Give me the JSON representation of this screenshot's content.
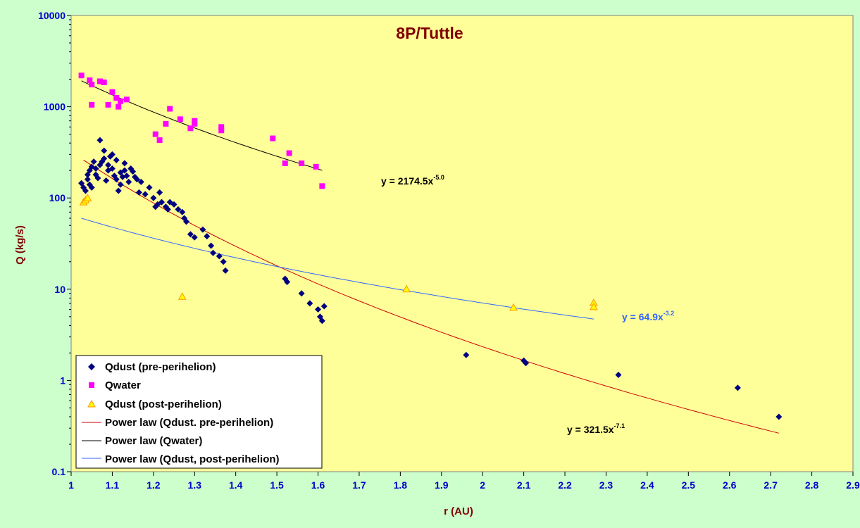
{
  "chart_data": {
    "type": "scatter",
    "title": "8P/Tuttle",
    "xlabel": "r (AU)",
    "ylabel": "Q (kg/s)",
    "xlim": [
      1,
      2.9
    ],
    "ylim": [
      0.1,
      10000
    ],
    "yscale": "log",
    "x_ticks": [
      "1",
      "1.1",
      "1.2",
      "1.3",
      "1.4",
      "1.5",
      "1.6",
      "1.7",
      "1.8",
      "1.9",
      "2",
      "2.1",
      "2.2",
      "2.3",
      "2.4",
      "2.5",
      "2.6",
      "2.7",
      "2.8",
      "2.9"
    ],
    "y_ticks": [
      "0.1",
      "1",
      "10",
      "100",
      "1000",
      "10000"
    ],
    "plot_background": "#ffff99",
    "page_background": "#ccffcc",
    "legend_position": "bottom-left",
    "series": [
      {
        "name": "Qdust (pre-perihelion)",
        "marker": "diamond",
        "color": "#000080",
        "points": [
          [
            1.025,
            145
          ],
          [
            1.03,
            130
          ],
          [
            1.035,
            120
          ],
          [
            1.04,
            160
          ],
          [
            1.04,
            180
          ],
          [
            1.045,
            200
          ],
          [
            1.045,
            140
          ],
          [
            1.05,
            220
          ],
          [
            1.05,
            130
          ],
          [
            1.055,
            250
          ],
          [
            1.06,
            210
          ],
          [
            1.06,
            180
          ],
          [
            1.065,
            165
          ],
          [
            1.07,
            430
          ],
          [
            1.07,
            230
          ],
          [
            1.075,
            250
          ],
          [
            1.08,
            330
          ],
          [
            1.08,
            270
          ],
          [
            1.085,
            155
          ],
          [
            1.09,
            200
          ],
          [
            1.09,
            230
          ],
          [
            1.095,
            285
          ],
          [
            1.1,
            300
          ],
          [
            1.1,
            210
          ],
          [
            1.105,
            175
          ],
          [
            1.11,
            260
          ],
          [
            1.11,
            160
          ],
          [
            1.115,
            120
          ],
          [
            1.12,
            190
          ],
          [
            1.12,
            140
          ],
          [
            1.125,
            170
          ],
          [
            1.13,
            200
          ],
          [
            1.13,
            240
          ],
          [
            1.135,
            175
          ],
          [
            1.14,
            150
          ],
          [
            1.145,
            210
          ],
          [
            1.15,
            195
          ],
          [
            1.155,
            170
          ],
          [
            1.16,
            160
          ],
          [
            1.165,
            115
          ],
          [
            1.17,
            150
          ],
          [
            1.18,
            110
          ],
          [
            1.19,
            130
          ],
          [
            1.2,
            100
          ],
          [
            1.205,
            80
          ],
          [
            1.21,
            85
          ],
          [
            1.215,
            115
          ],
          [
            1.22,
            90
          ],
          [
            1.23,
            80
          ],
          [
            1.235,
            75
          ],
          [
            1.24,
            90
          ],
          [
            1.25,
            85
          ],
          [
            1.26,
            75
          ],
          [
            1.27,
            70
          ],
          [
            1.275,
            60
          ],
          [
            1.28,
            55
          ],
          [
            1.29,
            40
          ],
          [
            1.3,
            37
          ],
          [
            1.32,
            45
          ],
          [
            1.33,
            38
          ],
          [
            1.34,
            30
          ],
          [
            1.345,
            25
          ],
          [
            1.36,
            23
          ],
          [
            1.37,
            20
          ],
          [
            1.375,
            16
          ],
          [
            1.52,
            13
          ],
          [
            1.525,
            12
          ],
          [
            1.56,
            9
          ],
          [
            1.58,
            7
          ],
          [
            1.6,
            6
          ],
          [
            1.605,
            5
          ],
          [
            1.61,
            4.5
          ],
          [
            1.615,
            6.5
          ],
          [
            1.96,
            1.9
          ],
          [
            2.1,
            1.65
          ],
          [
            2.105,
            1.55
          ],
          [
            2.33,
            1.15
          ],
          [
            2.62,
            0.83
          ],
          [
            2.72,
            0.4
          ]
        ]
      },
      {
        "name": "Qwater",
        "marker": "square",
        "color": "#ff00ff",
        "points": [
          [
            1.025,
            2200
          ],
          [
            1.045,
            1950
          ],
          [
            1.05,
            1750
          ],
          [
            1.05,
            1050
          ],
          [
            1.07,
            1900
          ],
          [
            1.08,
            1850
          ],
          [
            1.09,
            1050
          ],
          [
            1.1,
            1450
          ],
          [
            1.11,
            1250
          ],
          [
            1.115,
            1000
          ],
          [
            1.12,
            1150
          ],
          [
            1.135,
            1200
          ],
          [
            1.205,
            500
          ],
          [
            1.215,
            430
          ],
          [
            1.23,
            650
          ],
          [
            1.24,
            950
          ],
          [
            1.265,
            730
          ],
          [
            1.29,
            580
          ],
          [
            1.3,
            650
          ],
          [
            1.3,
            700
          ],
          [
            1.365,
            550
          ],
          [
            1.365,
            600
          ],
          [
            1.49,
            450
          ],
          [
            1.52,
            240
          ],
          [
            1.53,
            310
          ],
          [
            1.56,
            240
          ],
          [
            1.595,
            220
          ],
          [
            1.61,
            135
          ]
        ]
      },
      {
        "name": "Qdust (post-perihelion)",
        "marker": "triangle",
        "color": "#ff9900",
        "fill": "#ffff00",
        "points": [
          [
            1.03,
            90
          ],
          [
            1.035,
            95
          ],
          [
            1.04,
            100
          ],
          [
            1.27,
            8.3
          ],
          [
            1.815,
            10
          ],
          [
            2.075,
            6.3
          ],
          [
            2.27,
            7.1
          ],
          [
            2.27,
            6.4
          ]
        ]
      }
    ],
    "fits": [
      {
        "name": "Power law (Qdust. pre-perihelion)",
        "color": "#cc0000",
        "coefficient": 321.5,
        "exponent": -7.1,
        "x_range": [
          1.03,
          2.72
        ],
        "equation_base": "y = 321.5x",
        "equation_exp": "-7.1"
      },
      {
        "name": "Power law (Qwater)",
        "color": "#000000",
        "coefficient": 2174.5,
        "exponent": -5.0,
        "x_range": [
          1.025,
          1.61
        ],
        "equation_base": "y = 2174.5x",
        "equation_exp": "-5.0"
      },
      {
        "name": "Power law (Qdust, post-perihelion)",
        "color": "#3366ff",
        "coefficient": 64.9,
        "exponent": -3.2,
        "x_range": [
          1.025,
          2.27
        ],
        "equation_base": "y = 64.9x",
        "equation_exp": "-3.2"
      }
    ]
  }
}
